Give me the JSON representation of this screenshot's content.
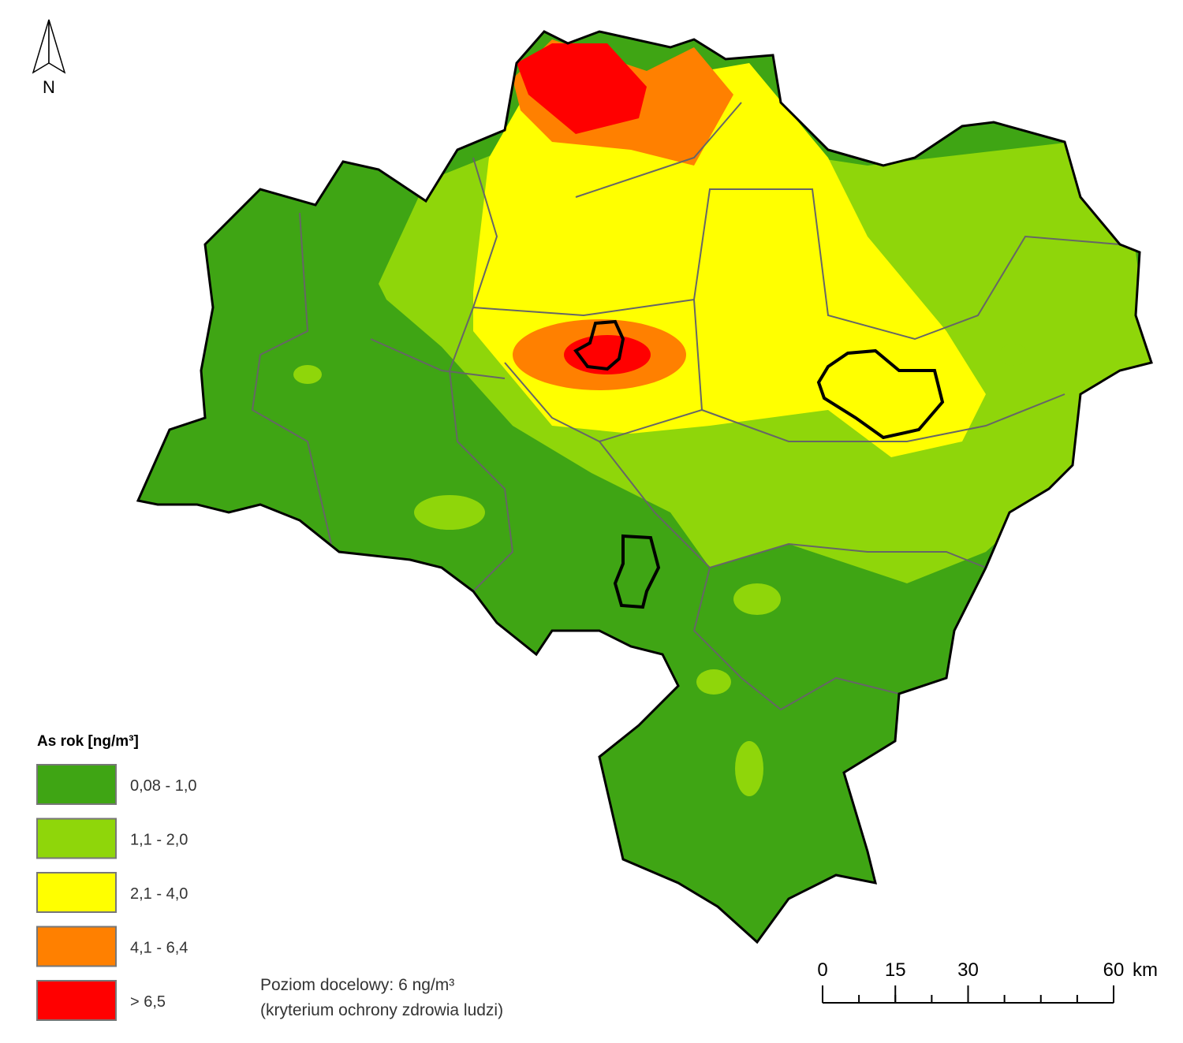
{
  "north_arrow": {
    "label": "N"
  },
  "legend": {
    "title": "As rok [ng/m³]",
    "items": [
      {
        "label": "0,08 - 1,0",
        "color": "#3fa514"
      },
      {
        "label": "1,1 - 2,0",
        "color": "#8fd60a"
      },
      {
        "label": "2,1 - 4,0",
        "color": "#ffff00"
      },
      {
        "label": "4,1 - 6,4",
        "color": "#ff8000"
      },
      {
        "label": "> 6,5",
        "color": "#ff0000"
      }
    ]
  },
  "note": {
    "line1": "Poziom docelowy: 6 ng/m³",
    "line2": "(kryterium ochrony zdrowia ludzi)"
  },
  "scale_bar": {
    "ticks": [
      0,
      15,
      30,
      60
    ],
    "unit": "km"
  }
}
